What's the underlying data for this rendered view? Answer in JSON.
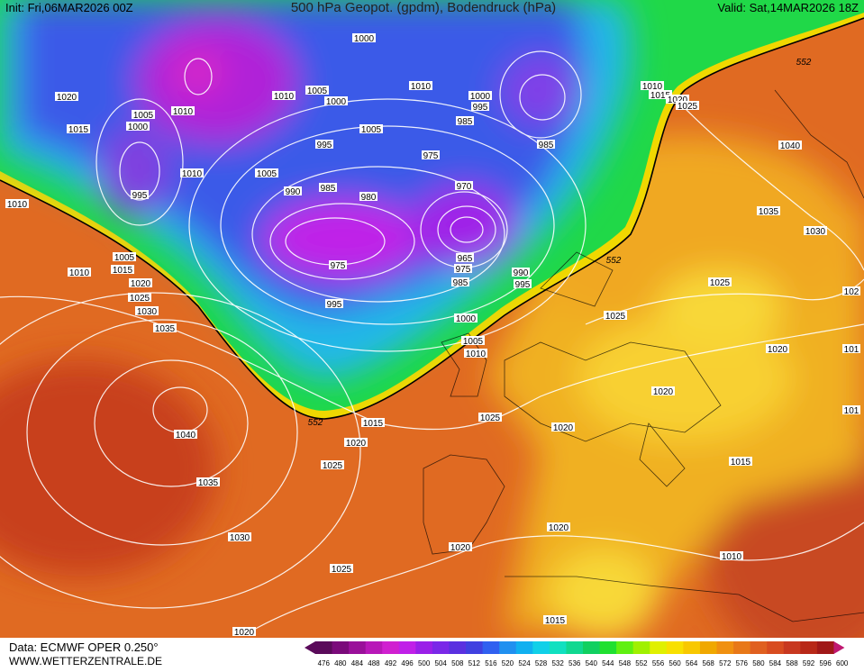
{
  "header": {
    "init": "Init: Fri,06MAR2026 00Z",
    "title": "500 hPa Geopot. (gpdm), Bodendruck (hPa)",
    "valid": "Valid: Sat,14MAR2026 18Z"
  },
  "footer": {
    "source": "Data: ECMWF OPER 0.250°",
    "site": "WWW.WETTERZENTRALE.DE"
  },
  "legend": {
    "labels": [
      "476",
      "480",
      "484",
      "488",
      "492",
      "496",
      "500",
      "504",
      "508",
      "512",
      "516",
      "520",
      "524",
      "528",
      "532",
      "536",
      "540",
      "544",
      "548",
      "552",
      "556",
      "560",
      "564",
      "568",
      "572",
      "576",
      "580",
      "584",
      "588",
      "592",
      "596",
      "600"
    ],
    "colors": [
      "#5a0a5a",
      "#7a0a7a",
      "#9a109a",
      "#b818b8",
      "#d020d0",
      "#c020e8",
      "#9a20e8",
      "#7a28e8",
      "#5a30e0",
      "#4040e0",
      "#3060f0",
      "#2090f0",
      "#10b0f0",
      "#10d0e8",
      "#10e0c0",
      "#10d890",
      "#10d060",
      "#20e030",
      "#60f010",
      "#a0f000",
      "#e0f000",
      "#f8e000",
      "#f8c800",
      "#f0a800",
      "#f09010",
      "#e87818",
      "#e06020",
      "#d84c20",
      "#c83820",
      "#b82818",
      "#a01818",
      "#c01870"
    ]
  },
  "isobar_labels": [
    "1000",
    "1010",
    "1005",
    "1000",
    "1010",
    "1000",
    "995",
    "985",
    "1005",
    "995",
    "975",
    "985",
    "1010",
    "1015",
    "1020",
    "1025",
    "1040",
    "1035",
    "1030",
    "1020",
    "1005",
    "1000",
    "1010",
    "1015",
    "1010",
    "995",
    "1005",
    "990",
    "985",
    "980",
    "970",
    "975",
    "965",
    "975",
    "990",
    "995",
    "985",
    "995",
    "1000",
    "1005",
    "1010",
    "1010",
    "1005",
    "1010",
    "1015",
    "1020",
    "1025",
    "1030",
    "1035",
    "1040",
    "1035",
    "1030",
    "1025",
    "1020",
    "1015",
    "1020",
    "1025",
    "1025",
    "1020",
    "1020",
    "1025",
    "1025",
    "1020",
    "1020",
    "1020",
    "1015",
    "1010",
    "1015",
    "102",
    "101",
    "101"
  ],
  "contour_labels": [
    "552",
    "552",
    "552"
  ]
}
